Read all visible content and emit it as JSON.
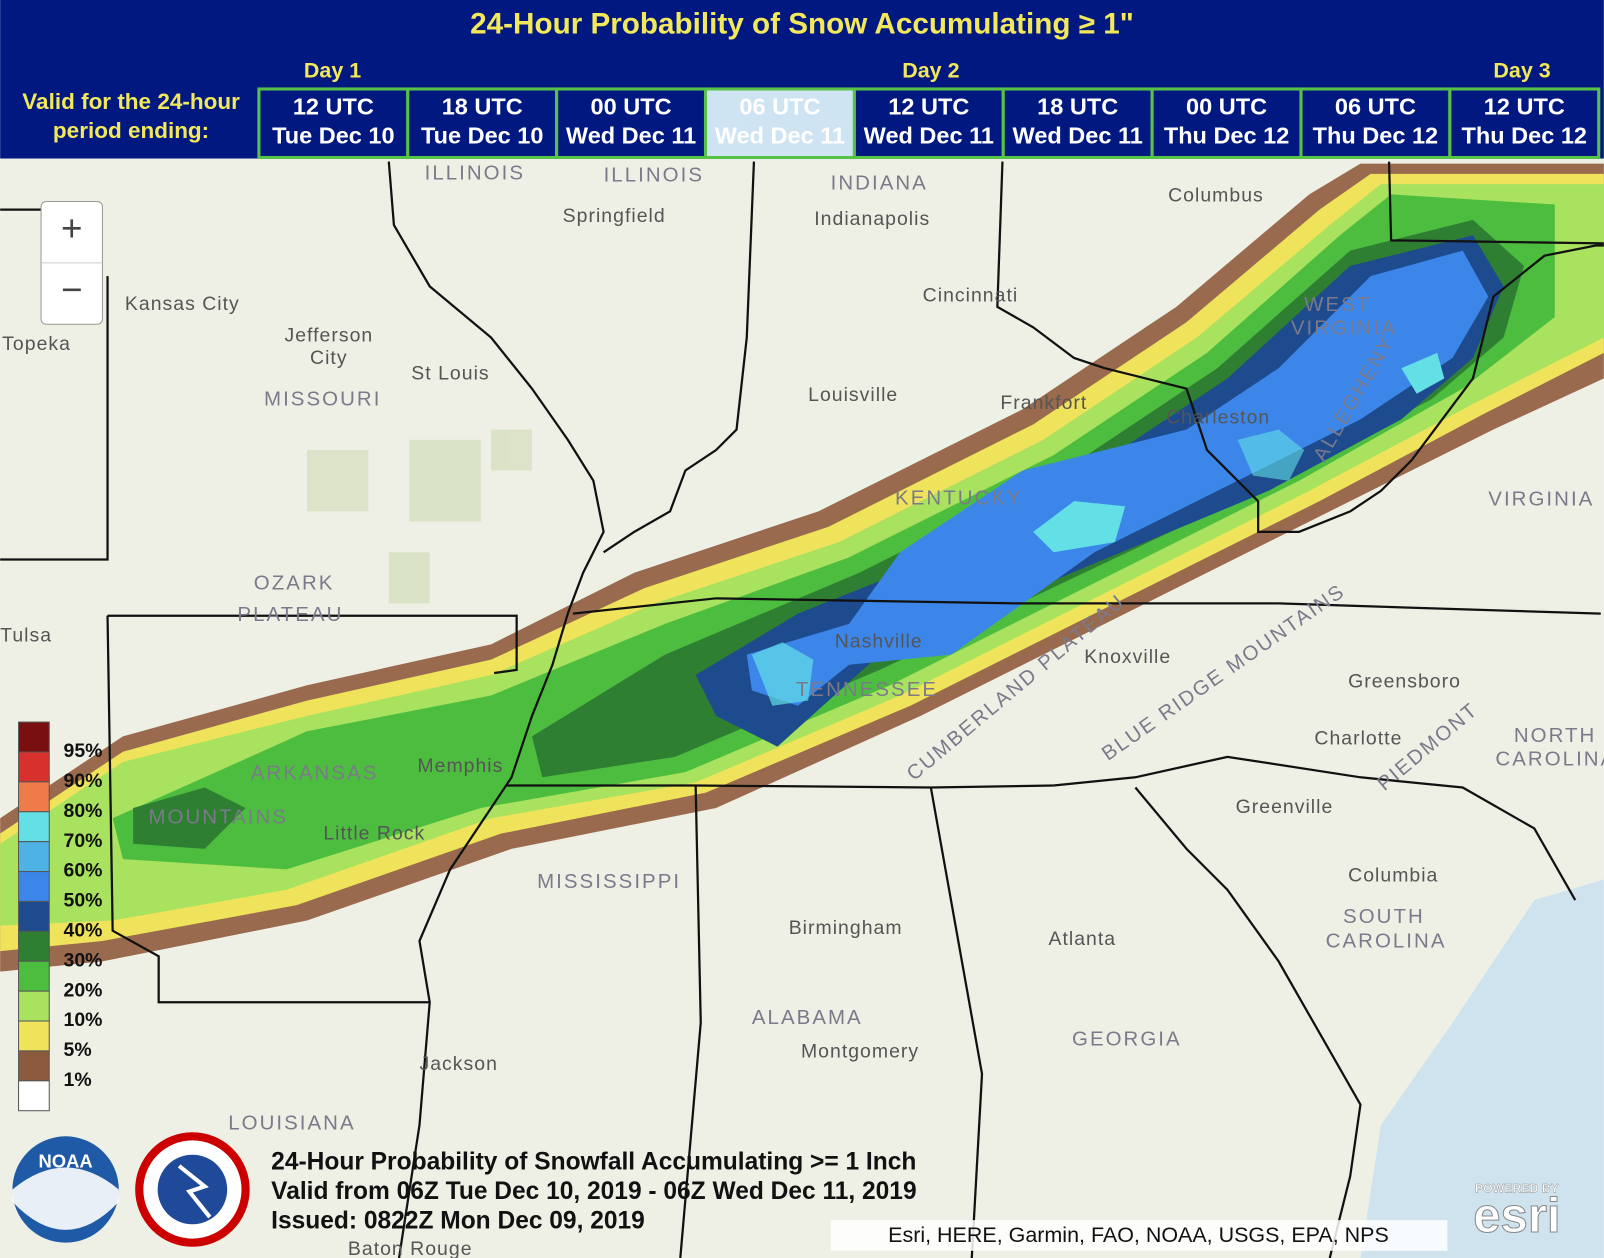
{
  "header": {
    "title": "24-Hour Probability of Snow Accumulating ≥ 1\"",
    "days": [
      "Day 1",
      "Day 2",
      "Day 3"
    ],
    "valid_label": [
      "Valid for the 24-hour",
      "period ending:"
    ],
    "tabs": [
      [
        "12 UTC",
        "Tue Dec 10"
      ],
      [
        "18 UTC",
        "Tue Dec 10"
      ],
      [
        "00 UTC",
        "Wed Dec 11"
      ],
      [
        "06 UTC",
        "Wed Dec 11"
      ],
      [
        "12 UTC",
        "Wed Dec 11"
      ],
      [
        "18 UTC",
        "Wed Dec 11"
      ],
      [
        "00 UTC",
        "Thu Dec 12"
      ],
      [
        "06 UTC",
        "Thu Dec 12"
      ],
      [
        "12 UTC",
        "Thu Dec 12"
      ]
    ],
    "selected_tab": 3
  },
  "zoom": {
    "in": "+",
    "out": "−"
  },
  "legend": {
    "labels": [
      "95%",
      "90%",
      "80%",
      "70%",
      "60%",
      "50%",
      "40%",
      "30%",
      "20%",
      "10%",
      "5%",
      "1%"
    ],
    "colors": [
      "#7a0f0f",
      "#d8302c",
      "#ef7a4a",
      "#62e0e6",
      "#4fb2e4",
      "#3c86ea",
      "#1d4b8e",
      "#2f7f33",
      "#4dbd3f",
      "#a9e25e",
      "#f0e35c",
      "#8c5a3e",
      "#ffffff"
    ]
  },
  "map": {
    "labels": [
      "ILLINOIS",
      "ILLINOIS",
      "INDIANA",
      "Springfield",
      "Indianapolis",
      "Columbus",
      "Kansas City",
      "Topeka",
      "Jefferson",
      "City",
      "St Louis",
      "MISSOURI",
      "Cincinnati",
      "Louisville",
      "Frankfort",
      "WEST",
      "VIRGINIA",
      "Charleston",
      "KENTUCKY",
      "VIRGINIA",
      "OZARK",
      "PLATEAU",
      "Nashville",
      "TENNESSEE",
      "Knoxville",
      "Greensboro",
      "Charlotte",
      "NORTH",
      "CAROLINA",
      "ARKANSAS",
      "Memphis",
      "Little Rock",
      "MOUNTAINS",
      "MISSISSIPPI",
      "Greenville",
      "Columbia",
      "SOUTH",
      "CAROLINA",
      "Birmingham",
      "Atlanta",
      "ALABAMA",
      "GEORGIA",
      "Montgomery",
      "Jackson",
      "LOUISIANA",
      "BLUE RIDGE MOUNTAINS",
      "CUMBERLAND PLATEAU",
      "ALLEGHENY",
      "PIEDMONT",
      "Tulsa",
      "Baton Rouge"
    ]
  },
  "footer": {
    "lines": [
      "24-Hour Probability of Snowfall Accumulating >= 1 Inch",
      "Valid from 06Z Tue Dec 10, 2019 - 06Z Wed Dec 11, 2019",
      "Issued: 0822Z Mon Dec 09, 2019"
    ],
    "attribution": "Esri, HERE, Garmin, FAO, NOAA, USGS, EPA, NPS",
    "esri_powered": "POWERED BY",
    "esri": "esri",
    "noaa": "NOAA"
  }
}
